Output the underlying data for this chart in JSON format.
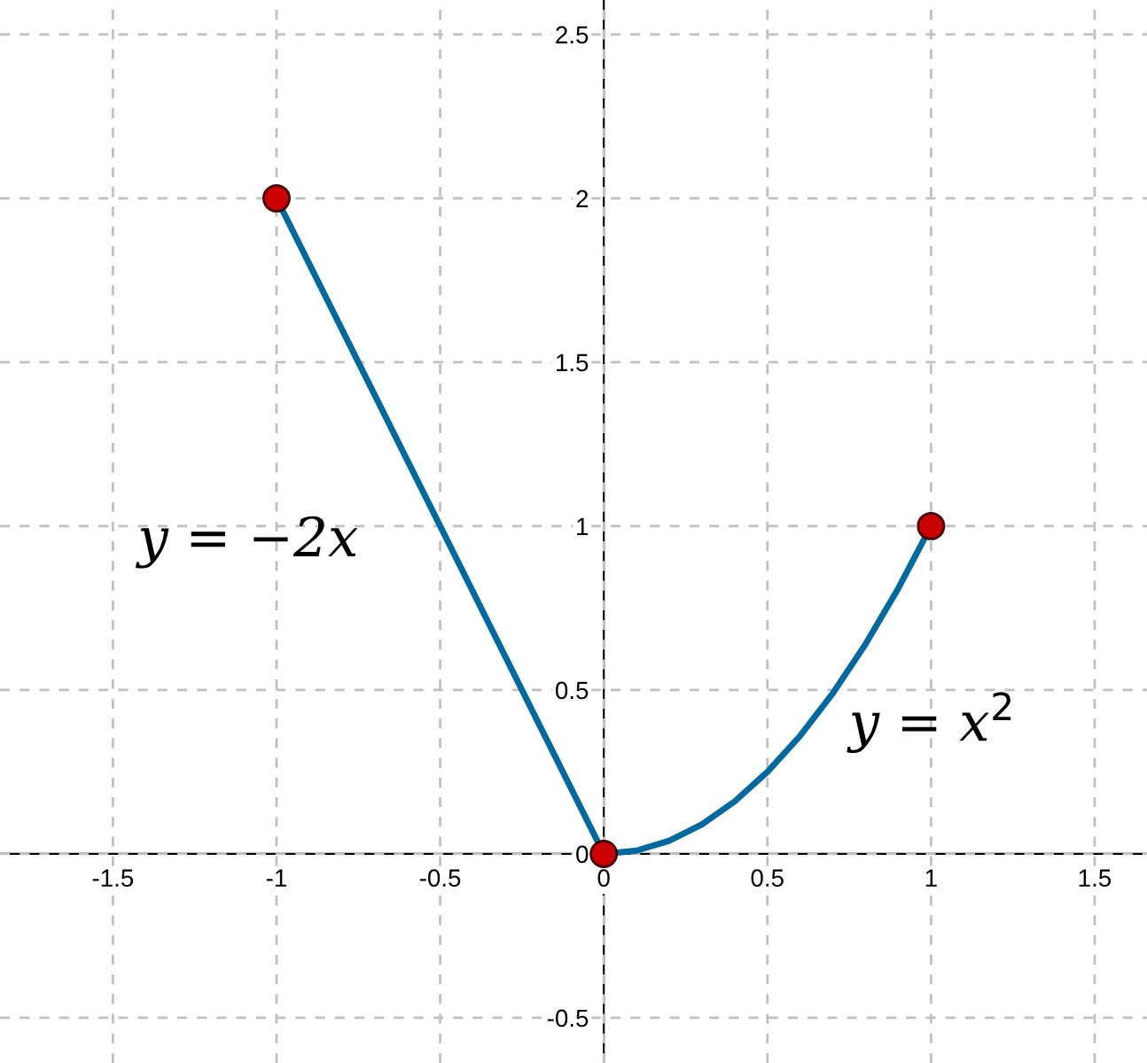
{
  "chart_data": {
    "type": "line",
    "xlim": [
      -1.845,
      1.66
    ],
    "ylim": [
      -0.638,
      2.605
    ],
    "xticks": [
      -1.5,
      -1,
      -0.5,
      0,
      0.5,
      1,
      1.5
    ],
    "yticks": [
      -0.5,
      0,
      0.5,
      1,
      1.5,
      2,
      2.5
    ],
    "grid": true,
    "series": [
      {
        "color": "#0069a0",
        "x": [
          -1,
          0
        ],
        "values": [
          2,
          0
        ],
        "marker": "none"
      },
      {
        "color": "#0069a0",
        "x": [
          0,
          0.1,
          0.2,
          0.3,
          0.4,
          0.5,
          0.6,
          0.7,
          0.8,
          0.9,
          1
        ],
        "values": [
          0,
          0.01,
          0.04,
          0.09,
          0.16,
          0.25,
          0.36,
          0.49,
          0.64,
          0.81,
          1
        ],
        "marker": "none"
      },
      {
        "type": "scatter",
        "color": "#cc0000",
        "x": [
          -1,
          0,
          1
        ],
        "values": [
          2,
          0,
          1
        ],
        "marker": "circle"
      }
    ],
    "annotations": [
      "y = −2x",
      "y = x$^{2}$"
    ]
  }
}
